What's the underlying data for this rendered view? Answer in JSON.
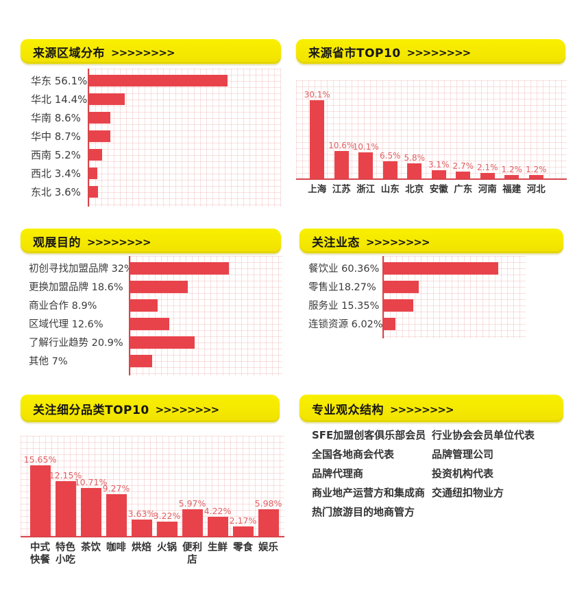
{
  "palette": {
    "banner_yellow": "#F5E800",
    "bar_red": "#E8434B",
    "axis_red": "#D8444B",
    "value_label_red": "#E05F62",
    "text_dark": "#333333"
  },
  "chart_data": [
    {
      "type": "bar",
      "orientation": "horizontal",
      "title": "来源区域分布",
      "arrows": ">>>>>>>>",
      "categories": [
        "华东",
        "华北",
        "华南",
        "华中",
        "西南",
        "西北",
        "东北"
      ],
      "values": [
        56.1,
        14.4,
        8.6,
        8.7,
        5.2,
        3.4,
        3.6
      ],
      "row_labels": [
        "华东 56.1%",
        "华北 14.4%",
        "华南 8.6%",
        "华中 8.7%",
        "西南 5.2%",
        "西北 3.4%",
        "东北 3.6%"
      ],
      "unit": "%",
      "grid": true,
      "legend": false
    },
    {
      "type": "bar",
      "orientation": "vertical",
      "title": "来源省市TOP10",
      "arrows": ">>>>>>>>",
      "categories": [
        "上海",
        "江苏",
        "浙江",
        "山东",
        "北京",
        "安徽",
        "广东",
        "河南",
        "福建",
        "河北"
      ],
      "values": [
        30.1,
        10.6,
        10.1,
        6.5,
        5.8,
        3.1,
        2.7,
        2.1,
        1.2,
        1.2
      ],
      "value_labels": [
        "30.1%",
        "10.6%",
        "10.1%",
        "6.5%",
        "5.8%",
        "3.1%",
        "2.7%",
        "2.1%",
        "1.2%",
        "1.2%"
      ],
      "unit": "%",
      "grid": true,
      "legend": false
    },
    {
      "type": "bar",
      "orientation": "horizontal",
      "title": "观展目的",
      "arrows": ">>>>>>>>",
      "categories": [
        "初创寻找加盟品牌",
        "更换加盟品牌",
        "商业合作",
        "区域代理",
        "了解行业趋势",
        "其他"
      ],
      "values": [
        32,
        18.6,
        8.9,
        12.6,
        20.9,
        7
      ],
      "row_labels": [
        "初创寻找加盟品牌 32%",
        "更换加盟品牌 18.6%",
        "商业合作 8.9%",
        "区域代理 12.6%",
        "了解行业趋势 20.9%",
        "其他 7%"
      ],
      "unit": "%",
      "grid": true,
      "legend": false
    },
    {
      "type": "bar",
      "orientation": "horizontal",
      "title": "关注业态",
      "arrows": ">>>>>>>>",
      "categories": [
        "餐饮业",
        "零售业",
        "服务业",
        "连锁资源"
      ],
      "values": [
        60.36,
        18.27,
        15.35,
        6.02
      ],
      "row_labels": [
        "餐饮业 60.36%",
        "零售业18.27%",
        "服务业 15.35%",
        "连锁资源 6.02%"
      ],
      "unit": "%",
      "grid": true,
      "legend": false
    },
    {
      "type": "bar",
      "orientation": "vertical",
      "title": "关注细分品类TOP10",
      "arrows": ">>>>>>>>",
      "categories": [
        "中式快餐",
        "特色小吃",
        "茶饮",
        "咖啡",
        "烘焙",
        "火锅",
        "便利店",
        "生鲜",
        "零食",
        "娱乐"
      ],
      "display_categories": [
        "中式\n快餐",
        "特色\n小吃",
        "茶饮",
        "咖啡",
        "烘焙",
        "火锅",
        "便利\n店",
        "生鲜",
        "零食",
        "娱乐"
      ],
      "values": [
        15.65,
        12.15,
        10.71,
        9.27,
        3.63,
        3.22,
        5.97,
        4.22,
        2.17,
        5.98
      ],
      "value_labels": [
        "15.65%",
        "12.15%",
        "10.71%",
        "9.27%",
        "3.63%",
        "3.22%",
        "5.97%",
        "4.22%",
        "2.17%",
        "5.98%"
      ],
      "unit": "%",
      "grid": true,
      "legend": false
    }
  ],
  "audience": {
    "title": "专业观众结构",
    "arrows": ">>>>>>>>",
    "columns": [
      [
        "SFE加盟创客俱乐部会员",
        "全国各地商会代表",
        "品牌代理商",
        "商业地产运营方和集成商",
        "热门旅游目的地商管方"
      ],
      [
        "行业协会会员单位代表",
        "品牌管理公司",
        "投资机构代表",
        "交通纽扣物业方"
      ]
    ]
  }
}
